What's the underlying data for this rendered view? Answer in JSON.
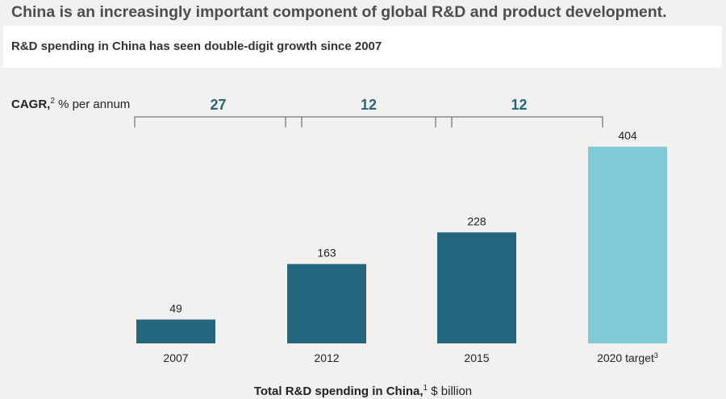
{
  "title": "China is an increasingly important component of global R&D and product development.",
  "subtitle": "R&D spending in China has seen double-digit growth since 2007",
  "cagr": {
    "label_bold": "CAGR,",
    "label_sup": "2",
    "label_rest": " % per annum",
    "periods": [
      {
        "from": "2007",
        "to": "2012",
        "value": "27"
      },
      {
        "from": "2012",
        "to": "2015",
        "value": "12"
      },
      {
        "from": "2015",
        "to": "2020 target",
        "value": "12"
      }
    ]
  },
  "axis_title": {
    "bold": "Total R&D spending in China,",
    "sup": "1",
    "rest": " $ billion"
  },
  "colors": {
    "bar_actual": "#25667f",
    "bar_target": "#7ecbd5",
    "cagr_value": "#25667f",
    "bracket": "#555555",
    "background": "#f2f1ef"
  },
  "chart_data": {
    "type": "bar",
    "title": "Total R&D spending in China, $ billion",
    "categories": [
      "2007",
      "2012",
      "2015",
      "2020 target"
    ],
    "category_sups": [
      "",
      "",
      "",
      "3"
    ],
    "values": [
      49,
      163,
      228,
      404
    ],
    "value_labels": [
      "49",
      "163",
      "228",
      "404"
    ],
    "kinds": [
      "actual",
      "actual",
      "actual",
      "target"
    ],
    "ylim": [
      0,
      404
    ],
    "xlabel": "Total R&D spending in China, $ billion",
    "ylabel": "",
    "grid": false
  }
}
